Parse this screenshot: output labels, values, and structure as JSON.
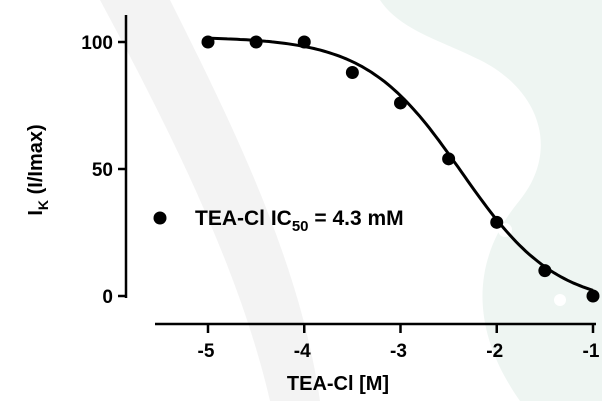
{
  "chart_data": {
    "type": "scatter",
    "x": [
      -5,
      -4.5,
      -4,
      -3.5,
      -3,
      -2.5,
      -2,
      -1.5,
      -1
    ],
    "y": [
      100,
      100,
      100,
      88,
      76,
      54,
      29,
      10,
      0
    ],
    "fit": {
      "type": "sigmoid",
      "top": 102,
      "bottom": -4,
      "log_ic50": -2.37,
      "hill_slope": 0.88
    },
    "xlim": [
      -5.5,
      -1
    ],
    "ylim": [
      0,
      110
    ],
    "x_ticks": [
      "-5",
      "-4",
      "-3",
      "-2",
      "-1"
    ],
    "y_ticks": [
      "0",
      "50",
      "100"
    ],
    "xlabel": "TEA-Cl [M]",
    "ylabel_main": "I",
    "ylabel_sub": "K",
    "ylabel_rest": " (I/Imax)",
    "legend": {
      "label_prefix": "TEA-Cl IC",
      "label_sub": "50",
      "label_suffix": " = 4.3 mM",
      "placement": "center-left"
    },
    "grid": false,
    "colors": {
      "points": "#000000",
      "line": "#000000",
      "watermark": "#eef5f2"
    }
  }
}
